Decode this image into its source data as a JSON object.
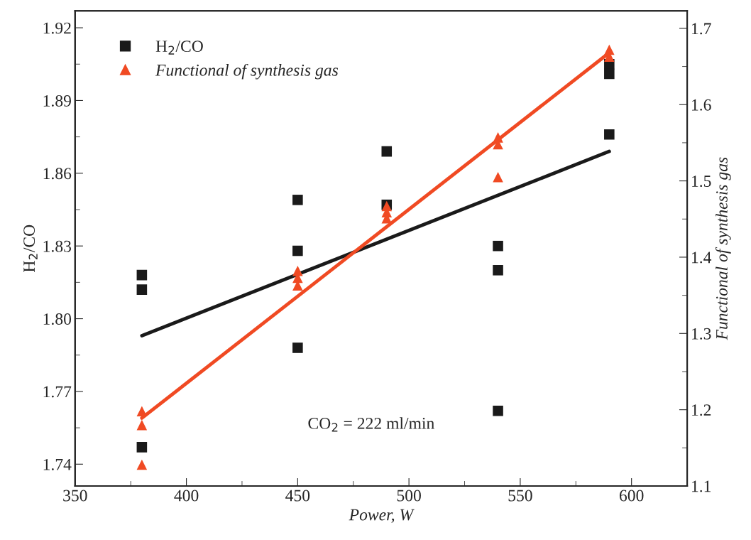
{
  "chart_data": {
    "type": "scatter",
    "xlabel": "Power, W",
    "ylabel": "H$_{2}$/CO",
    "y2label": "Functional of synthesis gas",
    "xlim": [
      350,
      625
    ],
    "xticks": [
      350,
      400,
      450,
      500,
      550,
      600
    ],
    "ylim": [
      1.731,
      1.927
    ],
    "yticks": [
      1.74,
      1.77,
      {
        "value": 1.8,
        "label": "1.80"
      },
      1.83,
      1.86,
      1.89,
      1.92
    ],
    "y2lim": [
      1.1,
      1.723
    ],
    "y2ticks": [
      1.1,
      1.2,
      1.3,
      1.4,
      1.5,
      1.6,
      1.7
    ],
    "legend": "top left",
    "annotations": [
      "CO$_{2}$ = 222 ml/min"
    ],
    "series": [
      {
        "name": "H$_{2}$/CO",
        "marker": "square",
        "color": "#1a1a1a",
        "x": [
          380,
          380,
          380,
          450,
          450,
          450,
          490,
          490,
          540,
          540,
          540,
          590,
          590,
          590
        ],
        "values": [
          1.818,
          1.812,
          1.747,
          1.849,
          1.828,
          1.788,
          1.869,
          1.847,
          1.83,
          1.82,
          1.762,
          1.905,
          1.901,
          1.876
        ]
      },
      {
        "name": "Functional of synthesis gas",
        "marker": "triangle",
        "axis": "y2",
        "color": "#f04a23",
        "x": [
          380,
          380,
          380,
          450,
          450,
          450,
          490,
          490,
          490,
          540,
          540,
          540,
          590,
          590
        ],
        "values": [
          1.198,
          1.18,
          1.128,
          1.382,
          1.373,
          1.363,
          1.467,
          1.459,
          1.451,
          1.557,
          1.548,
          1.505,
          1.672,
          1.663
        ]
      },
      {
        "type": "line",
        "color": "#1a1a1a",
        "x": [
          380,
          590
        ],
        "values": [
          1.793,
          1.869
        ]
      },
      {
        "type": "line",
        "axis": "y2",
        "color": "#f04a23",
        "x": [
          380,
          590
        ],
        "values": [
          1.189,
          1.668
        ]
      }
    ]
  }
}
